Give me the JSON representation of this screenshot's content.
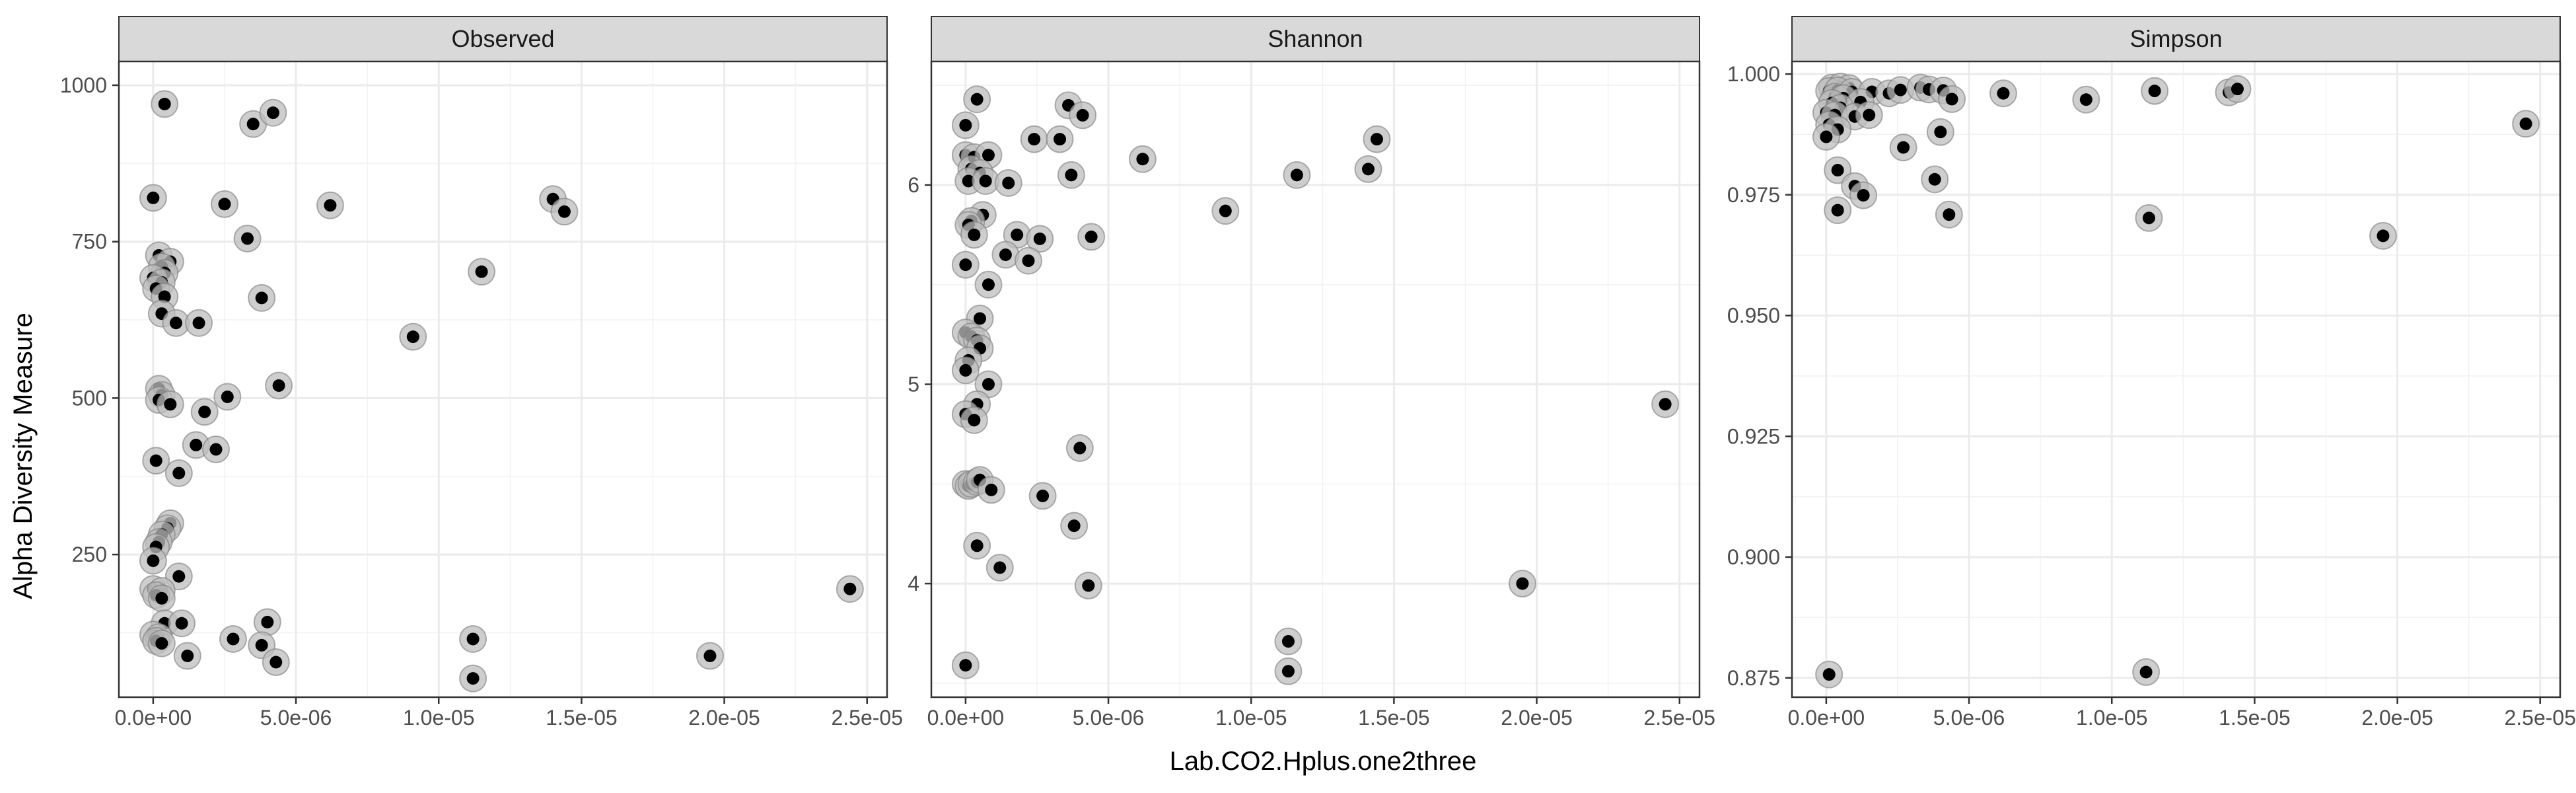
{
  "chart_data": {
    "type": "scatter",
    "facet_layout": "1x3, free y scales",
    "xlabel": "Lab.CO2.Hplus.one2three",
    "ylabel": "Alpha Diversity Measure",
    "xlim": [
      -1.2e-06,
      2.57e-05
    ],
    "x_ticks": [
      0,
      5e-06,
      1e-05,
      1.5e-05,
      2e-05,
      2.5e-05
    ],
    "x_tick_labels": [
      "0.0e+00",
      "5.0e-06",
      "1.0e-05",
      "1.5e-05",
      "2.0e-05",
      "2.5e-05"
    ],
    "point_color": "#000000",
    "halo_color": "#bdbdbd",
    "grid": true,
    "panels": [
      {
        "title": "Observed",
        "ylim": [
          22,
          1038
        ],
        "y_ticks": [
          250,
          500,
          750,
          1000
        ],
        "y_tick_labels": [
          "250",
          "500",
          "750",
          "1000"
        ],
        "points": [
          [
            4e-07,
            970
          ],
          [
            3.5e-06,
            938
          ],
          [
            4.2e-06,
            956
          ],
          [
            0,
            820
          ],
          [
            2.5e-06,
            810
          ],
          [
            6.2e-06,
            808
          ],
          [
            1.4e-05,
            818
          ],
          [
            1.44e-05,
            798
          ],
          [
            3.3e-06,
            755
          ],
          [
            1.15e-05,
            702
          ],
          [
            2e-07,
            728
          ],
          [
            6e-07,
            718
          ],
          [
            3e-07,
            710
          ],
          [
            4e-07,
            700
          ],
          [
            0,
            692
          ],
          [
            3e-07,
            685
          ],
          [
            1e-07,
            675
          ],
          [
            4e-07,
            662
          ],
          [
            3.8e-06,
            660
          ],
          [
            3e-07,
            635
          ],
          [
            8e-07,
            620
          ],
          [
            1.6e-06,
            620
          ],
          [
            9.1e-06,
            598
          ],
          [
            4.4e-06,
            520
          ],
          [
            2e-07,
            515
          ],
          [
            3e-07,
            505
          ],
          [
            2.6e-06,
            502
          ],
          [
            2e-07,
            497
          ],
          [
            6e-07,
            490
          ],
          [
            1.8e-06,
            478
          ],
          [
            1.5e-06,
            425
          ],
          [
            2.2e-06,
            418
          ],
          [
            1e-07,
            400
          ],
          [
            9e-07,
            380
          ],
          [
            6e-07,
            300
          ],
          [
            5e-07,
            292
          ],
          [
            3e-07,
            282
          ],
          [
            2e-07,
            270
          ],
          [
            1e-07,
            262
          ],
          [
            0,
            240
          ],
          [
            9e-07,
            215
          ],
          [
            0,
            195
          ],
          [
            3e-07,
            192
          ],
          [
            1e-07,
            185
          ],
          [
            3e-07,
            180
          ],
          [
            2.44e-05,
            195
          ],
          [
            4e-07,
            140
          ],
          [
            1e-06,
            140
          ],
          [
            4e-06,
            142
          ],
          [
            0,
            122
          ],
          [
            2e-07,
            118
          ],
          [
            1e-07,
            112
          ],
          [
            3e-07,
            108
          ],
          [
            2.8e-06,
            115
          ],
          [
            3.8e-06,
            105
          ],
          [
            1.12e-05,
            115
          ],
          [
            1.2e-06,
            88
          ],
          [
            4.3e-06,
            78
          ],
          [
            1.95e-05,
            88
          ],
          [
            1.12e-05,
            52
          ]
        ]
      },
      {
        "title": "Shannon",
        "ylim": [
          3.43,
          6.62
        ],
        "y_ticks": [
          4,
          5,
          6
        ],
        "y_tick_labels": [
          "4",
          "5",
          "6"
        ],
        "points": [
          [
            4e-07,
            6.43
          ],
          [
            3.6e-06,
            6.4
          ],
          [
            4.1e-06,
            6.35
          ],
          [
            0,
            6.3
          ],
          [
            2.4e-06,
            6.23
          ],
          [
            3.3e-06,
            6.23
          ],
          [
            1.44e-05,
            6.23
          ],
          [
            0,
            6.15
          ],
          [
            3e-07,
            6.14
          ],
          [
            8e-07,
            6.15
          ],
          [
            6.2e-06,
            6.13
          ],
          [
            2e-07,
            6.08
          ],
          [
            5e-07,
            6.06
          ],
          [
            1.41e-05,
            6.08
          ],
          [
            1.16e-05,
            6.05
          ],
          [
            3.7e-06,
            6.05
          ],
          [
            1e-07,
            6.02
          ],
          [
            7e-07,
            6.02
          ],
          [
            1.5e-06,
            6.01
          ],
          [
            9.1e-06,
            5.87
          ],
          [
            6e-07,
            5.85
          ],
          [
            2e-07,
            5.82
          ],
          [
            1e-07,
            5.8
          ],
          [
            3e-07,
            5.75
          ],
          [
            1.8e-06,
            5.75
          ],
          [
            2.6e-06,
            5.73
          ],
          [
            4.4e-06,
            5.74
          ],
          [
            1.4e-06,
            5.65
          ],
          [
            2.2e-06,
            5.62
          ],
          [
            0,
            5.6
          ],
          [
            8e-07,
            5.5
          ],
          [
            5e-07,
            5.33
          ],
          [
            0,
            5.26
          ],
          [
            2e-07,
            5.24
          ],
          [
            4e-07,
            5.22
          ],
          [
            5e-07,
            5.18
          ],
          [
            1e-07,
            5.12
          ],
          [
            0,
            5.07
          ],
          [
            8e-07,
            5
          ],
          [
            4e-07,
            4.9
          ],
          [
            0,
            4.85
          ],
          [
            3e-07,
            4.82
          ],
          [
            2.45e-05,
            4.9
          ],
          [
            4e-06,
            4.68
          ],
          [
            0,
            4.5
          ],
          [
            1e-07,
            4.49
          ],
          [
            2e-07,
            4.5
          ],
          [
            4e-07,
            4.51
          ],
          [
            5e-07,
            4.52
          ],
          [
            9e-07,
            4.47
          ],
          [
            2.7e-06,
            4.44
          ],
          [
            3.8e-06,
            4.29
          ],
          [
            4e-07,
            4.19
          ],
          [
            1.2e-06,
            4.08
          ],
          [
            4.3e-06,
            3.99
          ],
          [
            1.95e-05,
            4
          ],
          [
            1.13e-05,
            3.71
          ],
          [
            0,
            3.59
          ],
          [
            1.13e-05,
            3.56
          ]
        ]
      },
      {
        "title": "Simpson",
        "ylim": [
          0.871,
          1.0026
        ],
        "y_ticks": [
          0.875,
          0.9,
          0.925,
          0.95,
          0.975,
          1
        ],
        "y_tick_labels": [
          "0.875",
          "0.900",
          "0.925",
          "0.950",
          "0.975",
          "1.000"
        ],
        "points": [
          [
            2e-07,
            0.9972
          ],
          [
            5e-07,
            0.9974
          ],
          [
            8e-07,
            0.9971
          ],
          [
            1e-07,
            0.9965
          ],
          [
            4e-07,
            0.9966
          ],
          [
            9e-07,
            0.9963
          ],
          [
            1.6e-06,
            0.9963
          ],
          [
            2.2e-06,
            0.996
          ],
          [
            2.6e-06,
            0.9967
          ],
          [
            3.3e-06,
            0.9972
          ],
          [
            3.6e-06,
            0.9968
          ],
          [
            4.1e-06,
            0.9966
          ],
          [
            4.4e-06,
            0.9948
          ],
          [
            6.2e-06,
            0.996
          ],
          [
            9.1e-06,
            0.9947
          ],
          [
            1.15e-05,
            0.9965
          ],
          [
            1.41e-05,
            0.9962
          ],
          [
            1.44e-05,
            0.9969
          ],
          [
            3e-07,
            0.9953
          ],
          [
            6e-07,
            0.995
          ],
          [
            1.2e-06,
            0.9942
          ],
          [
            2e-07,
            0.994
          ],
          [
            5e-07,
            0.993
          ],
          [
            0,
            0.992
          ],
          [
            3e-07,
            0.9915
          ],
          [
            1e-06,
            0.9912
          ],
          [
            1.5e-06,
            0.9915
          ],
          [
            2.45e-05,
            0.9897
          ],
          [
            1e-07,
            0.9895
          ],
          [
            4e-07,
            0.9885
          ],
          [
            4e-06,
            0.988
          ],
          [
            0,
            0.987
          ],
          [
            2.7e-06,
            0.9848
          ],
          [
            4e-07,
            0.9801
          ],
          [
            3.8e-06,
            0.9782
          ],
          [
            1e-06,
            0.9768
          ],
          [
            1.3e-06,
            0.9749
          ],
          [
            4.3e-06,
            0.9709
          ],
          [
            4e-07,
            0.9718
          ],
          [
            1.13e-05,
            0.9702
          ],
          [
            1.95e-05,
            0.9665
          ],
          [
            1e-07,
            0.8757
          ],
          [
            1.12e-05,
            0.8762
          ]
        ]
      }
    ]
  }
}
